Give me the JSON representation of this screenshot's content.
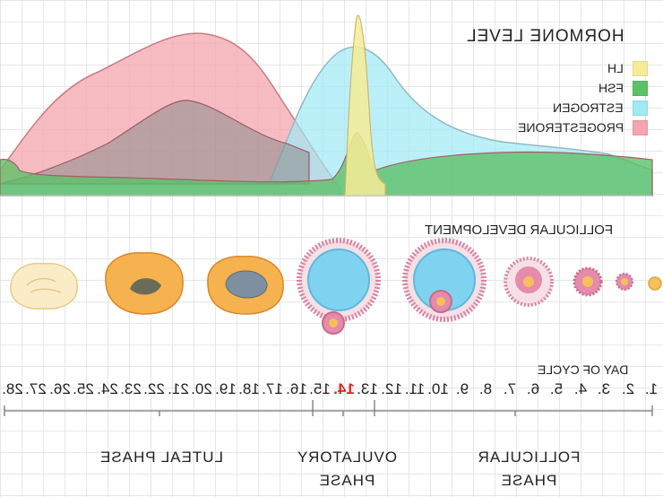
{
  "hormone_chart": {
    "title": "HORMONE LEVEL",
    "legend": [
      {
        "label": "LH",
        "color": "#f7ec96"
      },
      {
        "label": "FSH",
        "color": "#5cc168"
      },
      {
        "label": "ESTROGEN",
        "color": "#9feaf5"
      },
      {
        "label": "PROGESTERONE",
        "color": "#f4a5ad"
      }
    ]
  },
  "follicular": {
    "title": "FOLLICULAR DEVELOPMENT",
    "stages": [
      "corpus-albicans",
      "corpus-luteum-late",
      "corpus-luteum-early",
      "ovulating-follicle",
      "mature-follicle",
      "secondary-follicle",
      "early-follicle",
      "primary-follicle",
      "primordial-follicle"
    ]
  },
  "cycle": {
    "title": "DAY OF CYCLE",
    "days": [
      "1.",
      "2.",
      "3.",
      "4.",
      "5.",
      "6.",
      "7.",
      "8.",
      "9.",
      "10.",
      "11.",
      "12.",
      "13.",
      "14.",
      "15.",
      "16.",
      "17.",
      "18.",
      "19.",
      "20.",
      "21.",
      "22.",
      "23.",
      "24.",
      "25.",
      "26.",
      "27.",
      "28."
    ],
    "highlight_day": "14."
  },
  "phases": {
    "luteal": "LUTEAL PHASE",
    "ovulatory": "OVULATORY PHASE",
    "follicular": "FOLLICULAR PHASE"
  }
}
